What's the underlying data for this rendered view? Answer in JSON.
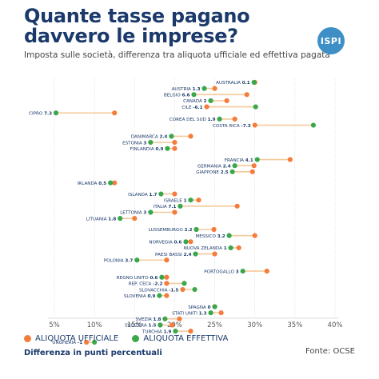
{
  "header": {
    "title_line1": "Quante tasse pagano",
    "title_line2": "davvero le imprese?",
    "subtitle": "Imposta sulle società, differenza tra aliquota ufficiale ed effettiva pagata",
    "logo_text": "ISPI"
  },
  "legend": {
    "official_label": "ALIQUOTA UFFICIALE",
    "effective_label": "ALIQUOTA EFFETTIVA"
  },
  "footer": {
    "note": "Differenza in punti percentuali",
    "source": "Fonte: OCSE"
  },
  "colors": {
    "official": "#f47c3c",
    "effective": "#3aa84a",
    "line": "#f5c99a",
    "label": "#1b3a6b"
  },
  "chart_data": {
    "type": "dumbbell",
    "xlim": [
      5,
      40
    ],
    "x_ticks": [
      "5%",
      "10%",
      "15%",
      "20%",
      "25%",
      "30%",
      "35%",
      "40%"
    ],
    "grid": "vertical",
    "series": [
      {
        "name": "ALIQUOTA UFFICIALE",
        "key": "official"
      },
      {
        "name": "ALIQUOTA EFFETTIVA",
        "key": "effective"
      }
    ],
    "rows": [
      {
        "country": "AUSTRALIA",
        "diff": "0.1",
        "official": 30.0,
        "effective": 29.9
      },
      {
        "country": "AUSTRIA",
        "diff": "1.3",
        "official": 25.0,
        "effective": 23.7
      },
      {
        "country": "BELGIO",
        "diff": "6.6",
        "official": 29.0,
        "effective": 22.4
      },
      {
        "country": "CANADA",
        "diff": "2",
        "official": 26.5,
        "effective": 24.5
      },
      {
        "country": "CILE",
        "diff": "-6.1",
        "official": 24.0,
        "effective": 30.1
      },
      {
        "country": "CIPRO",
        "diff": "7.3",
        "official": 12.5,
        "effective": 5.2
      },
      {
        "country": "COREA DEL SUD",
        "diff": "1.9",
        "official": 27.5,
        "effective": 25.6
      },
      {
        "country": "COSTA RICA",
        "diff": "-7.3",
        "official": 30.0,
        "effective": 37.3
      },
      {
        "country": "DANIMARCA",
        "diff": "2.4",
        "official": 22.0,
        "effective": 19.6
      },
      {
        "country": "ESTONIA",
        "diff": "3",
        "official": 20.0,
        "effective": 17.0
      },
      {
        "country": "FINLANDIA",
        "diff": "0.9",
        "official": 20.0,
        "effective": 19.1
      },
      {
        "country": "FRANCIA",
        "diff": "4.1",
        "official": 34.4,
        "effective": 30.3
      },
      {
        "country": "GERMANIA",
        "diff": "2.4",
        "official": 29.9,
        "effective": 27.5
      },
      {
        "country": "GIAPPONE",
        "diff": "2.5",
        "official": 29.7,
        "effective": 27.2
      },
      {
        "country": "IRLANDA",
        "diff": "0.5",
        "official": 12.5,
        "effective": 12.0
      },
      {
        "country": "ISLANDA",
        "diff": "1.7",
        "official": 20.0,
        "effective": 18.3
      },
      {
        "country": "ISRAELE",
        "diff": "1",
        "official": 23.0,
        "effective": 22.0
      },
      {
        "country": "ITALIA",
        "diff": "7.1",
        "official": 27.8,
        "effective": 20.7
      },
      {
        "country": "LETTONIA",
        "diff": "3",
        "official": 20.0,
        "effective": 17.0
      },
      {
        "country": "LITUANIA",
        "diff": "1.8",
        "official": 15.0,
        "effective": 13.2
      },
      {
        "country": "LUSSEMBURGO",
        "diff": "2.2",
        "official": 24.9,
        "effective": 22.7
      },
      {
        "country": "MESSICO",
        "diff": "3.2",
        "official": 30.0,
        "effective": 26.8
      },
      {
        "country": "NORVEGIA",
        "diff": "0.6",
        "official": 22.0,
        "effective": 21.4
      },
      {
        "country": "NUOVA ZELANDA",
        "diff": "1",
        "official": 28.0,
        "effective": 27.0
      },
      {
        "country": "PAESI BASSI",
        "diff": "2.4",
        "official": 25.0,
        "effective": 22.6
      },
      {
        "country": "POLONIA",
        "diff": "3.7",
        "official": 19.0,
        "effective": 15.3
      },
      {
        "country": "PORTOGALLO",
        "diff": "3",
        "official": 31.5,
        "effective": 28.5
      },
      {
        "country": "REGNO UNITO",
        "diff": "0.6",
        "official": 19.0,
        "effective": 18.4
      },
      {
        "country": "REP. CECA",
        "diff": "-2.2",
        "official": 19.0,
        "effective": 21.2
      },
      {
        "country": "SLOVACCHIA",
        "diff": "-1.5",
        "official": 21.0,
        "effective": 22.5
      },
      {
        "country": "SLOVENIA",
        "diff": "0.9",
        "official": 19.0,
        "effective": 18.1
      },
      {
        "country": "SPAGNA",
        "diff": "0",
        "official": 25.0,
        "effective": 25.0
      },
      {
        "country": "STATI UNITI",
        "diff": "1.3",
        "official": 25.8,
        "effective": 24.5
      },
      {
        "country": "SVEZIA",
        "diff": "1.8",
        "official": 20.6,
        "effective": 18.8
      },
      {
        "country": "SVIZZERA",
        "diff": "1.5",
        "official": 19.7,
        "effective": 18.2
      },
      {
        "country": "TURCHIA",
        "diff": "1.9",
        "official": 22.0,
        "effective": 20.1
      },
      {
        "country": "UNGHERIA",
        "diff": "-1",
        "official": 9.0,
        "effective": 10.0
      }
    ],
    "gaps_after": [
      "COSTA RICA",
      "FINLANDIA",
      "GIAPPONE",
      "IRLANDA",
      "LITUANIA",
      "POLONIA",
      "SLOVENIA",
      "TURCHIA"
    ]
  }
}
